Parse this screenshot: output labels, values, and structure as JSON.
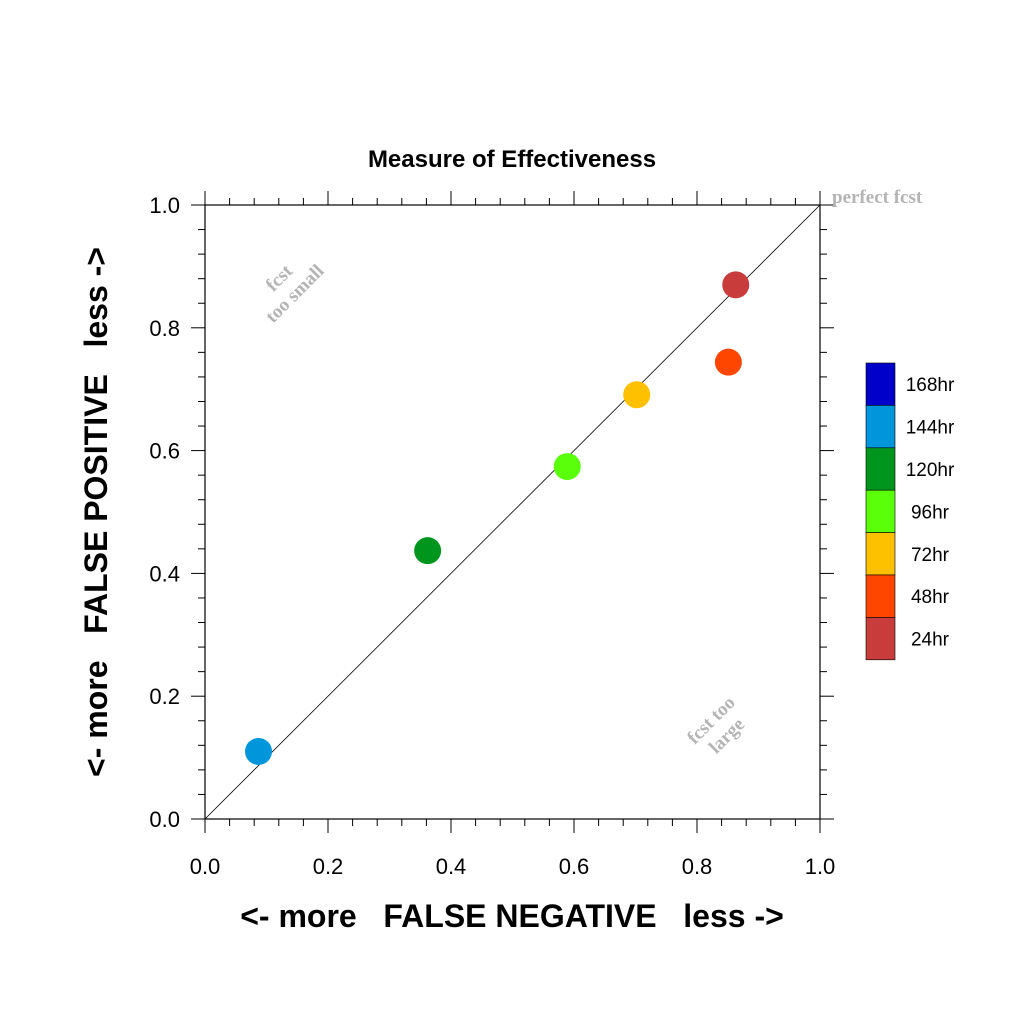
{
  "chart_data": {
    "type": "scatter",
    "title": "Measure of Effectiveness",
    "xlabel": "<- more   FALSE NEGATIVE   less ->",
    "ylabel": "<- more   FALSE POSITIVE   less ->",
    "xlim": [
      0.0,
      1.0
    ],
    "ylim": [
      0.0,
      1.0
    ],
    "x_ticks": [
      "0.0",
      "0.2",
      "0.4",
      "0.6",
      "0.8",
      "1.0"
    ],
    "y_ticks": [
      "0.0",
      "0.2",
      "0.4",
      "0.6",
      "0.8",
      "1.0"
    ],
    "grid": false,
    "reference_line": "diagonal",
    "legend_position": "right",
    "legend": [
      {
        "name": "168hr",
        "color": "#0000c8"
      },
      {
        "name": "144hr",
        "color": "#0096dc"
      },
      {
        "name": "120hr",
        "color": "#00961e"
      },
      {
        "name": "96hr",
        "color": "#5aff0a"
      },
      {
        "name": "72hr",
        "color": "#ffc000"
      },
      {
        "name": "48hr",
        "color": "#ff4600"
      },
      {
        "name": "24hr",
        "color": "#c83c3c"
      }
    ],
    "series": [
      {
        "name": "144hr",
        "color": "#0096dc",
        "x": 0.087,
        "y": 0.11
      },
      {
        "name": "120hr",
        "color": "#00961e",
        "x": 0.362,
        "y": 0.437
      },
      {
        "name": "96hr",
        "color": "#5aff0a",
        "x": 0.589,
        "y": 0.574
      },
      {
        "name": "72hr",
        "color": "#ffc000",
        "x": 0.702,
        "y": 0.691
      },
      {
        "name": "48hr",
        "color": "#ff4600",
        "x": 0.851,
        "y": 0.744
      },
      {
        "name": "24hr",
        "color": "#c83c3c",
        "x": 0.863,
        "y": 0.87
      }
    ],
    "annotations": {
      "perfect": "perfect fcst",
      "too_small_line1": "fcst",
      "too_small_line2": "too small",
      "too_large_line1": "fcst too",
      "too_large_line2": "large"
    }
  }
}
